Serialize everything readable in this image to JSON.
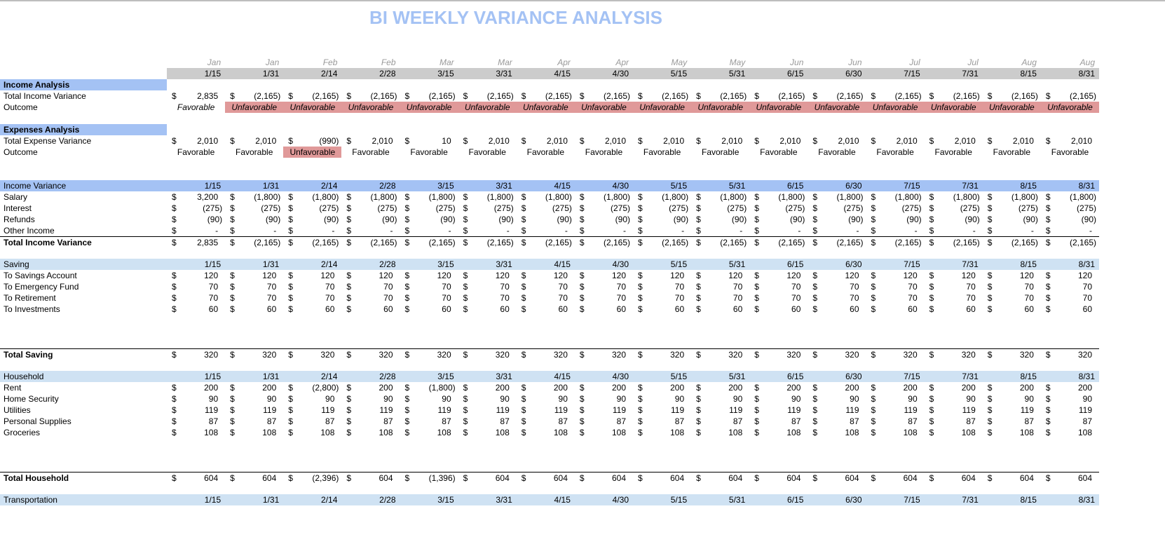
{
  "title": "BI WEEKLY VARIANCE ANALYSIS",
  "colors": {
    "title": "#a4c2f4",
    "header_dark": "#a4c2f4",
    "header_light": "#cfe2f3",
    "date_band": "#cccccc",
    "unfavorable": "#e09999"
  },
  "months": [
    "Jan",
    "Jan",
    "Feb",
    "Feb",
    "Mar",
    "Mar",
    "Apr",
    "Apr",
    "May",
    "May",
    "Jun",
    "Jun",
    "Jul",
    "Jul",
    "Aug",
    "Aug"
  ],
  "dates": [
    "1/15",
    "1/31",
    "2/14",
    "2/28",
    "3/15",
    "3/31",
    "4/15",
    "4/30",
    "5/15",
    "5/31",
    "6/15",
    "6/30",
    "7/15",
    "7/31",
    "8/15",
    "8/31"
  ],
  "currency_symbol": "$",
  "income_analysis": {
    "header": "Income Analysis",
    "total": {
      "label": "Total Income Variance",
      "values": [
        "2,835",
        "(2,165)",
        "(2,165)",
        "(2,165)",
        "(2,165)",
        "(2,165)",
        "(2,165)",
        "(2,165)",
        "(2,165)",
        "(2,165)",
        "(2,165)",
        "(2,165)",
        "(2,165)",
        "(2,165)",
        "(2,165)",
        "(2,165)"
      ]
    },
    "outcome": {
      "label": "Outcome",
      "values": [
        "Favorable",
        "Unfavorable",
        "Unfavorable",
        "Unfavorable",
        "Unfavorable",
        "Unfavorable",
        "Unfavorable",
        "Unfavorable",
        "Unfavorable",
        "Unfavorable",
        "Unfavorable",
        "Unfavorable",
        "Unfavorable",
        "Unfavorable",
        "Unfavorable",
        "Unfavorable"
      ]
    }
  },
  "expenses_analysis": {
    "header": "Expenses Analysis",
    "total": {
      "label": "Total Expense Variance",
      "values": [
        "2,010",
        "2,010",
        "(990)",
        "2,010",
        "10",
        "2,010",
        "2,010",
        "2,010",
        "2,010",
        "2,010",
        "2,010",
        "2,010",
        "2,010",
        "2,010",
        "2,010",
        "2,010"
      ]
    },
    "outcome": {
      "label": "Outcome",
      "values": [
        "Favorable",
        "Favorable",
        "Unfavorable",
        "Favorable",
        "Favorable",
        "Favorable",
        "Favorable",
        "Favorable",
        "Favorable",
        "Favorable",
        "Favorable",
        "Favorable",
        "Favorable",
        "Favorable",
        "Favorable",
        "Favorable"
      ]
    }
  },
  "income_variance": {
    "header": "Income Variance",
    "rows": [
      {
        "label": "Salary",
        "values": [
          "3,200",
          "(1,800)",
          "(1,800)",
          "(1,800)",
          "(1,800)",
          "(1,800)",
          "(1,800)",
          "(1,800)",
          "(1,800)",
          "(1,800)",
          "(1,800)",
          "(1,800)",
          "(1,800)",
          "(1,800)",
          "(1,800)",
          "(1,800)"
        ]
      },
      {
        "label": "Interest",
        "values": [
          "(275)",
          "(275)",
          "(275)",
          "(275)",
          "(275)",
          "(275)",
          "(275)",
          "(275)",
          "(275)",
          "(275)",
          "(275)",
          "(275)",
          "(275)",
          "(275)",
          "(275)",
          "(275)"
        ]
      },
      {
        "label": "Refunds",
        "values": [
          "(90)",
          "(90)",
          "(90)",
          "(90)",
          "(90)",
          "(90)",
          "(90)",
          "(90)",
          "(90)",
          "(90)",
          "(90)",
          "(90)",
          "(90)",
          "(90)",
          "(90)",
          "(90)"
        ]
      },
      {
        "label": "Other Income",
        "values": [
          "-",
          "-",
          "-",
          "-",
          "-",
          "-",
          "-",
          "-",
          "-",
          "-",
          "-",
          "-",
          "-",
          "-",
          "-",
          "-"
        ]
      }
    ],
    "total": {
      "label": "Total Income Variance",
      "values": [
        "2,835",
        "(2,165)",
        "(2,165)",
        "(2,165)",
        "(2,165)",
        "(2,165)",
        "(2,165)",
        "(2,165)",
        "(2,165)",
        "(2,165)",
        "(2,165)",
        "(2,165)",
        "(2,165)",
        "(2,165)",
        "(2,165)",
        "(2,165)"
      ]
    }
  },
  "saving": {
    "header": "Saving",
    "rows": [
      {
        "label": "To Savings Account",
        "values": [
          "120",
          "120",
          "120",
          "120",
          "120",
          "120",
          "120",
          "120",
          "120",
          "120",
          "120",
          "120",
          "120",
          "120",
          "120",
          "120"
        ]
      },
      {
        "label": "To Emergency Fund",
        "values": [
          "70",
          "70",
          "70",
          "70",
          "70",
          "70",
          "70",
          "70",
          "70",
          "70",
          "70",
          "70",
          "70",
          "70",
          "70",
          "70"
        ]
      },
      {
        "label": "To Retirement",
        "values": [
          "70",
          "70",
          "70",
          "70",
          "70",
          "70",
          "70",
          "70",
          "70",
          "70",
          "70",
          "70",
          "70",
          "70",
          "70",
          "70"
        ]
      },
      {
        "label": "To Investments",
        "values": [
          "60",
          "60",
          "60",
          "60",
          "60",
          "60",
          "60",
          "60",
          "60",
          "60",
          "60",
          "60",
          "60",
          "60",
          "60",
          "60"
        ]
      }
    ],
    "total": {
      "label": "Total Saving",
      "values": [
        "320",
        "320",
        "320",
        "320",
        "320",
        "320",
        "320",
        "320",
        "320",
        "320",
        "320",
        "320",
        "320",
        "320",
        "320",
        "320"
      ]
    }
  },
  "household": {
    "header": "Household",
    "rows": [
      {
        "label": "Rent",
        "values": [
          "200",
          "200",
          "(2,800)",
          "200",
          "(1,800)",
          "200",
          "200",
          "200",
          "200",
          "200",
          "200",
          "200",
          "200",
          "200",
          "200",
          "200"
        ]
      },
      {
        "label": "Home Security",
        "values": [
          "90",
          "90",
          "90",
          "90",
          "90",
          "90",
          "90",
          "90",
          "90",
          "90",
          "90",
          "90",
          "90",
          "90",
          "90",
          "90"
        ]
      },
      {
        "label": "Utilities",
        "values": [
          "119",
          "119",
          "119",
          "119",
          "119",
          "119",
          "119",
          "119",
          "119",
          "119",
          "119",
          "119",
          "119",
          "119",
          "119",
          "119"
        ]
      },
      {
        "label": "Personal Supplies",
        "values": [
          "87",
          "87",
          "87",
          "87",
          "87",
          "87",
          "87",
          "87",
          "87",
          "87",
          "87",
          "87",
          "87",
          "87",
          "87",
          "87"
        ]
      },
      {
        "label": "Groceries",
        "values": [
          "108",
          "108",
          "108",
          "108",
          "108",
          "108",
          "108",
          "108",
          "108",
          "108",
          "108",
          "108",
          "108",
          "108",
          "108",
          "108"
        ]
      }
    ],
    "total": {
      "label": "Total Household",
      "values": [
        "604",
        "604",
        "(2,396)",
        "604",
        "(1,396)",
        "604",
        "604",
        "604",
        "604",
        "604",
        "604",
        "604",
        "604",
        "604",
        "604",
        "604"
      ]
    }
  },
  "transportation": {
    "header": "Transportation"
  }
}
